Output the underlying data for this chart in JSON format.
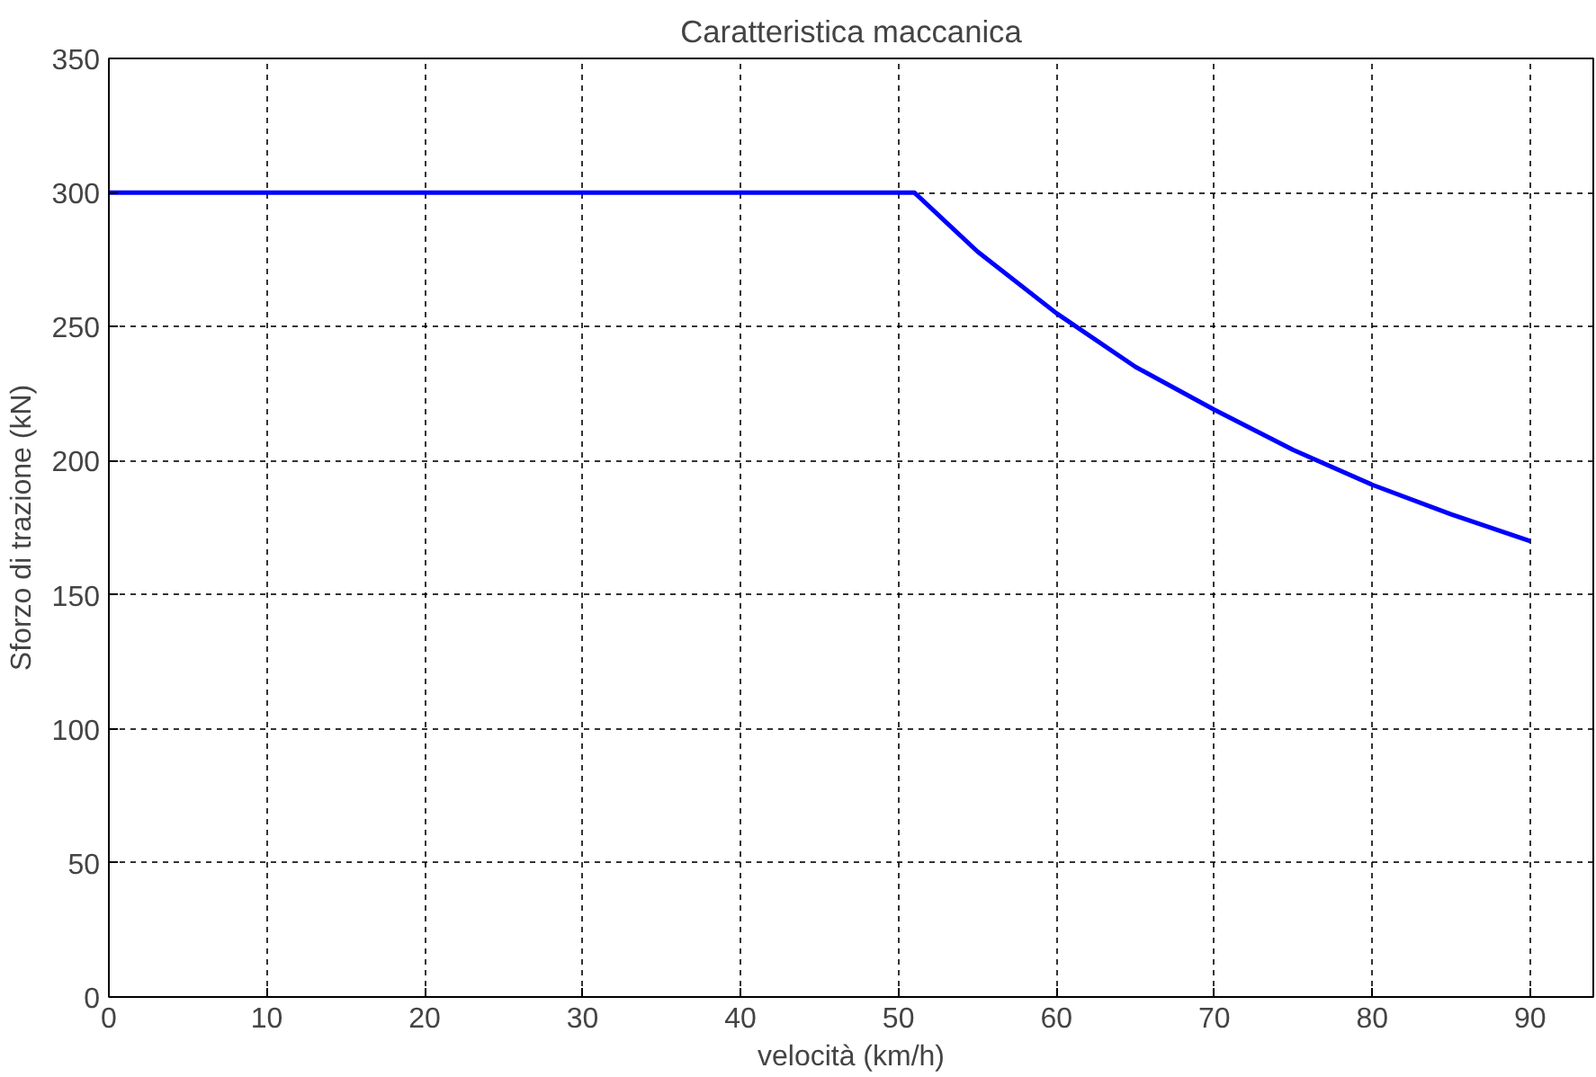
{
  "chart_data": {
    "type": "line",
    "title": "Caratteristica maccanica",
    "xlabel": "velocità (km/h)",
    "ylabel": "Sforzo di trazione (kN)",
    "x": [
      0,
      10,
      20,
      30,
      40,
      50,
      51,
      55,
      60,
      65,
      70,
      75,
      80,
      85,
      90
    ],
    "series": [
      {
        "color": "#0000ff",
        "values": [
          300,
          300,
          300,
          300,
          300,
          300,
          300,
          278,
          255,
          235,
          219,
          204,
          191,
          180,
          170
        ]
      }
    ],
    "xlim": [
      0,
      94
    ],
    "xticks": [
      0,
      10,
      20,
      30,
      40,
      50,
      60,
      70,
      80,
      90
    ],
    "ylim": [
      0,
      350
    ],
    "yticks": [
      0,
      50,
      100,
      150,
      200,
      250,
      300,
      350
    ],
    "grid": true,
    "line_style": "solid",
    "marker": "none"
  }
}
